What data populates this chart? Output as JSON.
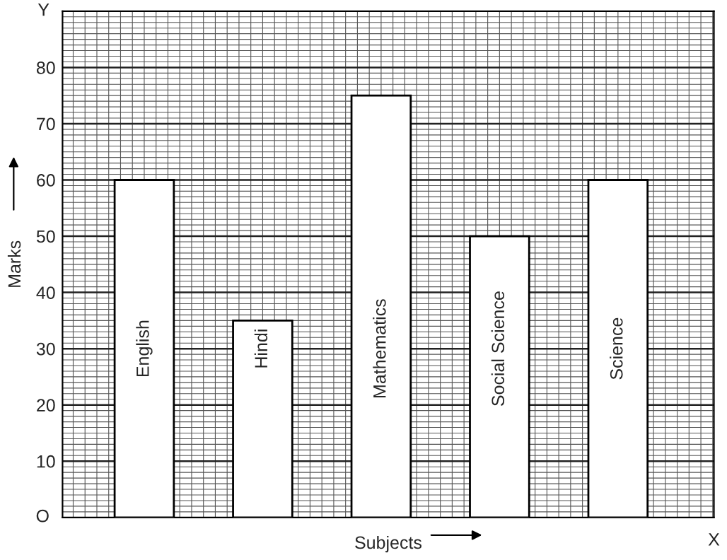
{
  "chart_data": {
    "type": "bar",
    "xlabel": "Subjects",
    "ylabel": "Marks",
    "categories": [
      "English",
      "Hindi",
      "Mathematics",
      "Social Science",
      "Science"
    ],
    "values": [
      60,
      35,
      75,
      50,
      60
    ],
    "color": "#ffffff",
    "ylim": [
      0,
      90
    ],
    "yticks": [
      10,
      20,
      30,
      40,
      50,
      60,
      70,
      80
    ],
    "grid": true,
    "annotations": [
      "O",
      "X",
      "Y"
    ]
  }
}
